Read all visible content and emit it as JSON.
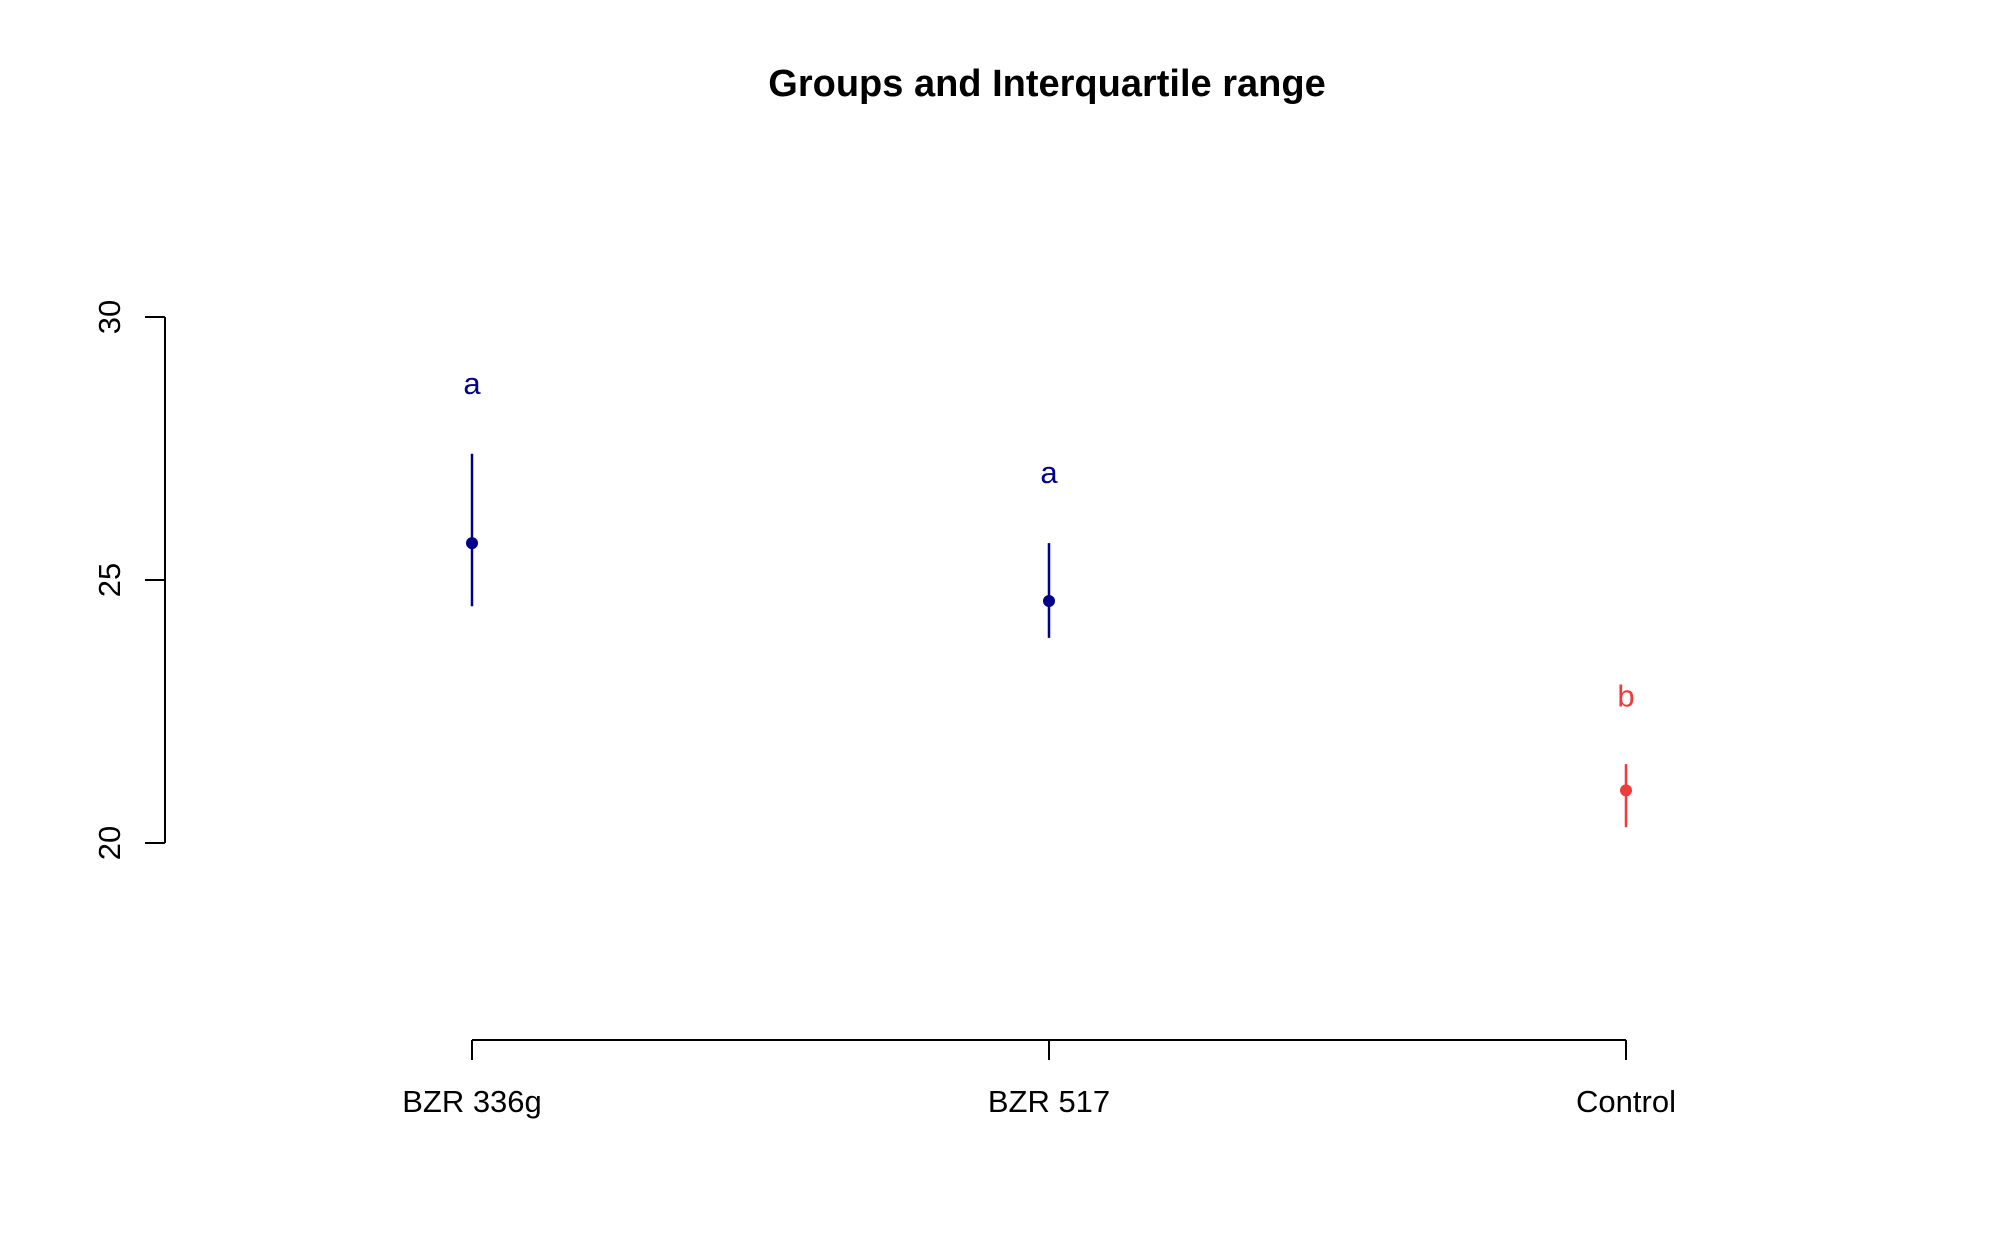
{
  "chart_data": {
    "type": "scatter",
    "title": "Groups and Interquartile range",
    "xlabel": "",
    "ylabel": "",
    "categories": [
      "BZR 336g",
      "BZR 517",
      "Control"
    ],
    "yticks": [
      20,
      25,
      30
    ],
    "ylim": [
      16.2,
      33.8
    ],
    "grid": false,
    "points": [
      {
        "category": "BZR 336g",
        "median": 25.7,
        "q1": 24.5,
        "q3": 27.4,
        "group_letter": "a",
        "letter_y": 28.75,
        "color": "#00008B"
      },
      {
        "category": "BZR 517",
        "median": 24.6,
        "q1": 23.9,
        "q3": 25.7,
        "group_letter": "a",
        "letter_y": 27.05,
        "color": "#00008B"
      },
      {
        "category": "Control",
        "median": 21.0,
        "q1": 20.3,
        "q3": 21.5,
        "group_letter": "b",
        "letter_y": 22.8,
        "color": "#EE3B3B"
      }
    ]
  }
}
